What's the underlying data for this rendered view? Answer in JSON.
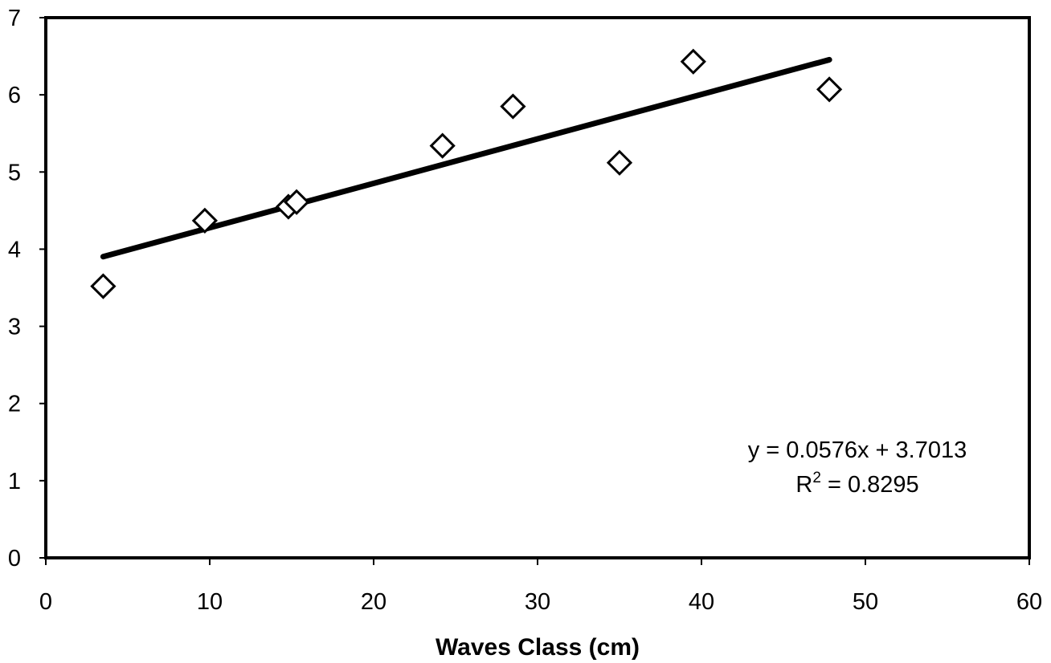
{
  "chart_data": {
    "type": "scatter",
    "title": "",
    "xlabel": "Waves Class (cm)",
    "ylabel": "",
    "xlim": [
      0,
      60
    ],
    "ylim": [
      0,
      7
    ],
    "xticks": [
      "0",
      "10",
      "20",
      "30",
      "40",
      "50",
      "60"
    ],
    "yticks": [
      "0",
      "1",
      "2",
      "3",
      "4",
      "5",
      "6",
      "7"
    ],
    "grid": false,
    "legend": "none",
    "marker": "open-diamond",
    "series": [
      {
        "points": [
          {
            "x": 3.5,
            "y": 3.52
          },
          {
            "x": 9.7,
            "y": 4.37
          },
          {
            "x": 14.8,
            "y": 4.55
          },
          {
            "x": 15.3,
            "y": 4.61
          },
          {
            "x": 24.2,
            "y": 5.34
          },
          {
            "x": 28.5,
            "y": 5.85
          },
          {
            "x": 35.0,
            "y": 5.12
          },
          {
            "x": 39.5,
            "y": 6.43
          },
          {
            "x": 47.8,
            "y": 6.07
          }
        ]
      }
    ],
    "trendline": {
      "type": "linear",
      "slope": 0.0576,
      "intercept": 3.7013,
      "x_range": [
        3.5,
        47.8
      ],
      "equation": "y = 0.0576x + 3.7013",
      "r2_prefix": "R",
      "r2_exponent": "2",
      "r2_suffix": " = 0.8295"
    },
    "colors": {
      "marker": "#000000",
      "line": "#000000"
    }
  }
}
